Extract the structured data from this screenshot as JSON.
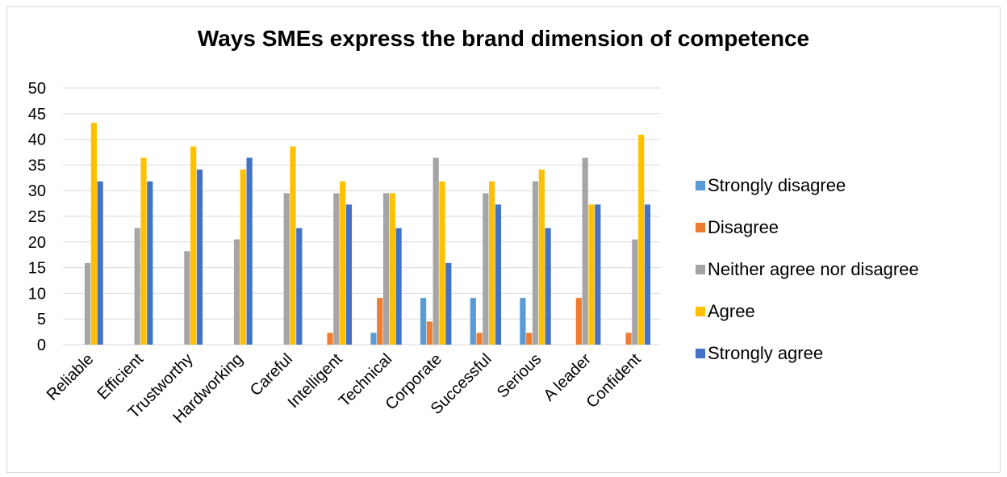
{
  "chart_data": {
    "type": "bar",
    "title": "Ways SMEs express the brand dimension of competence",
    "xlabel": "",
    "ylabel": "",
    "ylim": [
      0,
      50
    ],
    "yticks": [
      0,
      5,
      10,
      15,
      20,
      25,
      30,
      35,
      40,
      45,
      50
    ],
    "grid": true,
    "legend_position": "right",
    "categories": [
      "Reliable",
      "Efficient",
      "Trustworthy",
      "Hardworking",
      "Careful",
      "Intelligent",
      "Technical",
      "Corporate",
      "Successful",
      "Serious",
      "A leader",
      "Confident"
    ],
    "series": [
      {
        "name": "Strongly disagree",
        "color": "#5B9BD5",
        "values": [
          0,
          0,
          0,
          0,
          0,
          0,
          2.3,
          9.1,
          9.1,
          9.1,
          0,
          0
        ]
      },
      {
        "name": "Disagree",
        "color": "#ED7D31",
        "values": [
          0,
          0,
          0,
          0,
          0,
          2.3,
          9.1,
          4.5,
          2.3,
          2.3,
          9.1,
          2.3
        ]
      },
      {
        "name": "Neither agree nor disagree",
        "color": "#A5A5A5",
        "values": [
          15.9,
          22.7,
          18.2,
          20.5,
          29.5,
          29.5,
          29.5,
          36.4,
          29.5,
          31.8,
          36.4,
          20.5
        ]
      },
      {
        "name": "Agree",
        "color": "#FFC000",
        "values": [
          43.2,
          36.4,
          38.6,
          34.1,
          38.6,
          31.8,
          29.5,
          31.8,
          31.8,
          34.1,
          27.3,
          40.9
        ]
      },
      {
        "name": "Strongly agree",
        "color": "#4472C4",
        "values": [
          31.8,
          31.8,
          34.1,
          36.4,
          22.7,
          27.3,
          22.7,
          15.9,
          27.3,
          22.7,
          27.3,
          27.3
        ]
      }
    ]
  }
}
